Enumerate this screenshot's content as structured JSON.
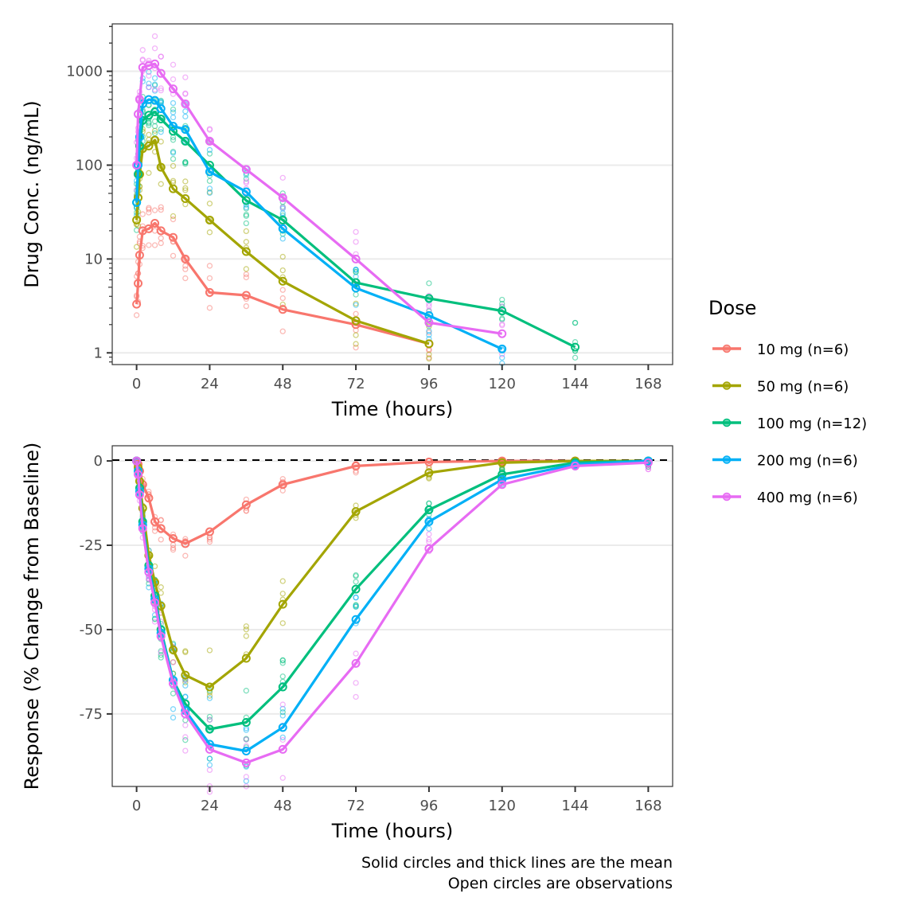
{
  "chart_data": [
    {
      "type": "line",
      "panel": "top",
      "yscale": "log10",
      "xlabel": "Time (hours)",
      "ylabel": "Drug Conc. (ng/mL)",
      "xlim": [
        -8,
        176
      ],
      "ylim": [
        0.75,
        3200
      ],
      "xticks": [
        0,
        24,
        48,
        72,
        96,
        120,
        144,
        168
      ],
      "yticks": [
        1,
        10,
        100,
        1000
      ],
      "ytick_labels": [
        "1",
        "10",
        "100",
        "1000"
      ],
      "grid": "horizontal major",
      "series": [
        {
          "name": "10 mg (n=6)",
          "color": "#F8766D",
          "x": [
            0,
            0.5,
            1,
            2,
            4,
            6,
            8,
            12,
            16,
            24,
            36,
            48,
            72,
            96
          ],
          "values": [
            3.3,
            5.5,
            11,
            20,
            21,
            24,
            20,
            17,
            10,
            4.4,
            4.1,
            2.9,
            2.0,
            1.25
          ]
        },
        {
          "name": "50 mg (n=6)",
          "color": "#A3A500",
          "x": [
            0,
            0.5,
            1,
            2,
            4,
            6,
            8,
            12,
            16,
            24,
            36,
            48,
            72,
            96
          ],
          "values": [
            26,
            45,
            80,
            150,
            160,
            185,
            95,
            56,
            44,
            26,
            12,
            5.8,
            2.2,
            1.25
          ]
        },
        {
          "name": "100 mg (n=12)",
          "color": "#00BF7D",
          "x": [
            0,
            0.5,
            1,
            2,
            4,
            6,
            8,
            12,
            16,
            24,
            36,
            48,
            72,
            96,
            120,
            144
          ],
          "values": [
            40,
            80,
            160,
            300,
            340,
            370,
            310,
            230,
            180,
            100,
            42,
            26,
            5.6,
            3.8,
            2.8,
            1.15
          ]
        },
        {
          "name": "200 mg (n=6)",
          "color": "#00B0F6",
          "x": [
            0,
            0.5,
            1,
            2,
            4,
            6,
            8,
            12,
            16,
            24,
            36,
            48,
            72,
            96,
            120
          ],
          "values": [
            40,
            100,
            200,
            450,
            500,
            490,
            400,
            260,
            240,
            85,
            52,
            21,
            4.9,
            2.5,
            1.1
          ]
        },
        {
          "name": "400 mg (n=6)",
          "color": "#E76BF3",
          "x": [
            0,
            0.5,
            1,
            2,
            4,
            6,
            8,
            12,
            16,
            24,
            36,
            48,
            72,
            96,
            120
          ],
          "values": [
            100,
            350,
            500,
            1100,
            1150,
            1200,
            950,
            650,
            450,
            180,
            90,
            45,
            10,
            2.1,
            1.6
          ]
        }
      ]
    },
    {
      "type": "line",
      "panel": "bottom",
      "xlabel": "Time (hours)",
      "ylabel": "Response (% Change from Baseline)",
      "xlim": [
        -8,
        176
      ],
      "ylim": [
        -96.5,
        4.5
      ],
      "xticks": [
        0,
        24,
        48,
        72,
        96,
        120,
        144,
        168
      ],
      "yticks": [
        0,
        -25,
        -50,
        -75
      ],
      "reference_line": {
        "y": 0,
        "style": "dashed",
        "color": "#000000"
      },
      "grid": "horizontal major",
      "series": [
        {
          "name": "10 mg (n=6)",
          "color": "#F8766D",
          "x": [
            0,
            0.5,
            1,
            2,
            4,
            6,
            8,
            12,
            16,
            24,
            36,
            48,
            72,
            96,
            120,
            144,
            168
          ],
          "values": [
            0,
            -1,
            -3,
            -7,
            -11,
            -18,
            -20,
            -23,
            -24.5,
            -21,
            -13,
            -7,
            -1.5,
            -0.3,
            0,
            0,
            0
          ]
        },
        {
          "name": "50 mg (n=6)",
          "color": "#A3A500",
          "x": [
            0,
            0.5,
            1,
            2,
            4,
            6,
            8,
            12,
            16,
            24,
            36,
            48,
            72,
            96,
            120,
            144,
            168
          ],
          "values": [
            0,
            -2,
            -6,
            -14,
            -28,
            -36,
            -43,
            -56,
            -63.5,
            -67,
            -58.5,
            -42.5,
            -15,
            -3.5,
            -0.5,
            0,
            0
          ]
        },
        {
          "name": "100 mg (n=12)",
          "color": "#00BF7D",
          "x": [
            0,
            0.5,
            1,
            2,
            4,
            6,
            8,
            12,
            16,
            24,
            36,
            48,
            72,
            96,
            120,
            144,
            168
          ],
          "values": [
            0,
            -3,
            -8,
            -18,
            -31,
            -40,
            -50,
            -65,
            -72,
            -79.5,
            -77.5,
            -67,
            -38,
            -14.5,
            -4,
            -0.5,
            0
          ]
        },
        {
          "name": "200 mg (n=6)",
          "color": "#00B0F6",
          "x": [
            0,
            0.5,
            1,
            2,
            4,
            6,
            8,
            12,
            16,
            24,
            36,
            48,
            72,
            96,
            120,
            144,
            168
          ],
          "values": [
            0,
            -3,
            -9,
            -19,
            -32,
            -41,
            -51,
            -65,
            -74,
            -84,
            -86,
            -79,
            -47,
            -18,
            -5.5,
            -1,
            0
          ]
        },
        {
          "name": "400 mg (n=6)",
          "color": "#E76BF3",
          "x": [
            0,
            0.5,
            1,
            2,
            4,
            6,
            8,
            12,
            16,
            24,
            36,
            48,
            72,
            96,
            120,
            144,
            168
          ],
          "values": [
            0,
            -4,
            -10,
            -20,
            -33,
            -42,
            -52,
            -66,
            -75,
            -85.5,
            -89.5,
            -85.5,
            -60,
            -26,
            -7,
            -1.5,
            -0.5
          ]
        }
      ]
    }
  ],
  "legend": {
    "title": "Dose",
    "position": "right",
    "items": [
      {
        "label": "10 mg (n=6)",
        "color": "#F8766D"
      },
      {
        "label": "50 mg (n=6)",
        "color": "#A3A500"
      },
      {
        "label": "100 mg (n=12)",
        "color": "#00BF7D"
      },
      {
        "label": "200 mg (n=6)",
        "color": "#00B0F6"
      },
      {
        "label": "400 mg (n=6)",
        "color": "#E76BF3"
      }
    ]
  },
  "caption": {
    "line1": "Solid circles and thick lines are the mean",
    "line2": "Open circles are observations"
  }
}
